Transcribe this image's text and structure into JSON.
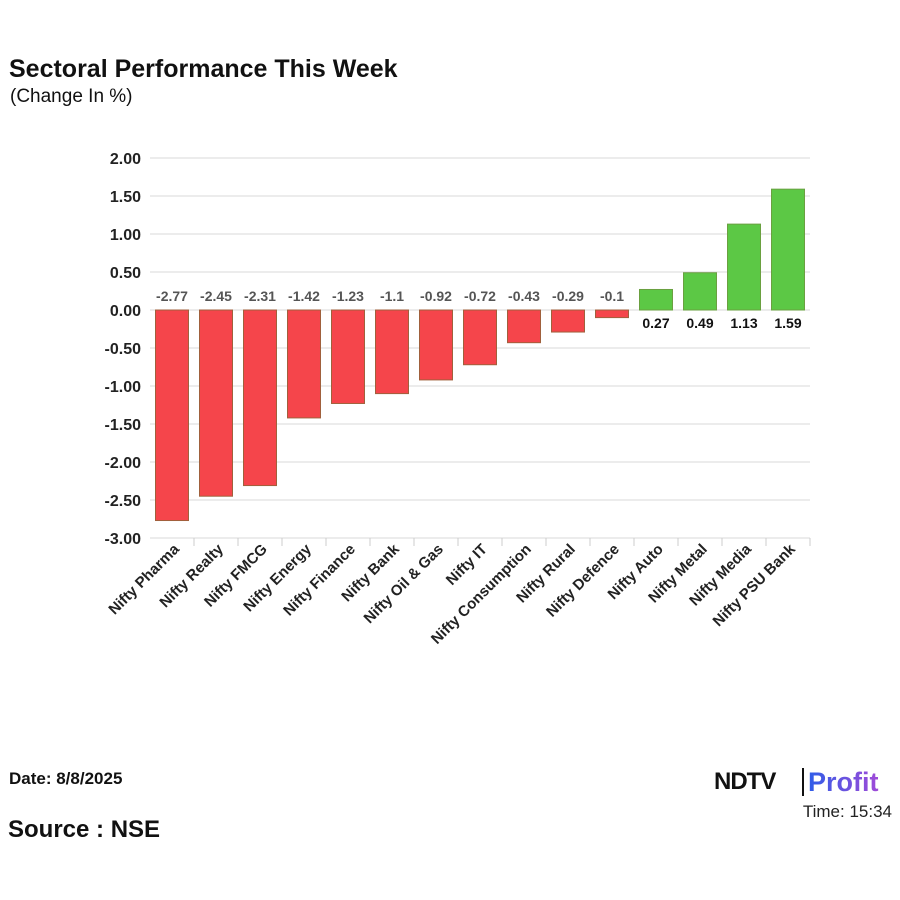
{
  "title": "Sectoral Performance This Week",
  "subtitle": "(Change In %)",
  "date": "Date: 8/8/2025",
  "source": "Source : NSE",
  "logo": {
    "brand": "NDTV",
    "product": "Profit",
    "time": "Time: 15:34"
  },
  "chart_data": {
    "type": "bar",
    "title": "Sectoral Performance This Week",
    "ylabel": "(Change In %)",
    "ylim": [
      -3,
      2
    ],
    "yticks": [
      "2.00",
      "1.50",
      "1.00",
      "0.50",
      "0.00",
      "-0.50",
      "-1.00",
      "-1.50",
      "-2.00",
      "-2.50",
      "-3.00"
    ],
    "grid": true,
    "categories": [
      "Nifty Pharma",
      "Nifty Realty",
      "Nifty FMCG",
      "Nifty Energy",
      "Nifty Finance",
      "Nifty Bank",
      "Nifty Oil & Gas",
      "Nifty IT",
      "Nifty Consumption",
      "Nifty Rural",
      "Nifty Defence",
      "Nifty Auto",
      "Nifty Metal",
      "Nifty Media",
      "Nifty PSU Bank"
    ],
    "values": [
      -2.77,
      -2.45,
      -2.31,
      -1.42,
      -1.23,
      -1.1,
      -0.92,
      -0.72,
      -0.43,
      -0.29,
      -0.1,
      0.27,
      0.49,
      1.13,
      1.59
    ],
    "data_labels": [
      "-2.77",
      "-2.45",
      "-2.31",
      "-1.42",
      "-1.23",
      "-1.1",
      "-0.92",
      "-0.72",
      "-0.43",
      "-0.29",
      "-0.1",
      "0.27",
      "0.49",
      "1.13",
      "1.59"
    ],
    "colors": {
      "negative": "#f5454b",
      "positive": "#5cc845"
    }
  }
}
